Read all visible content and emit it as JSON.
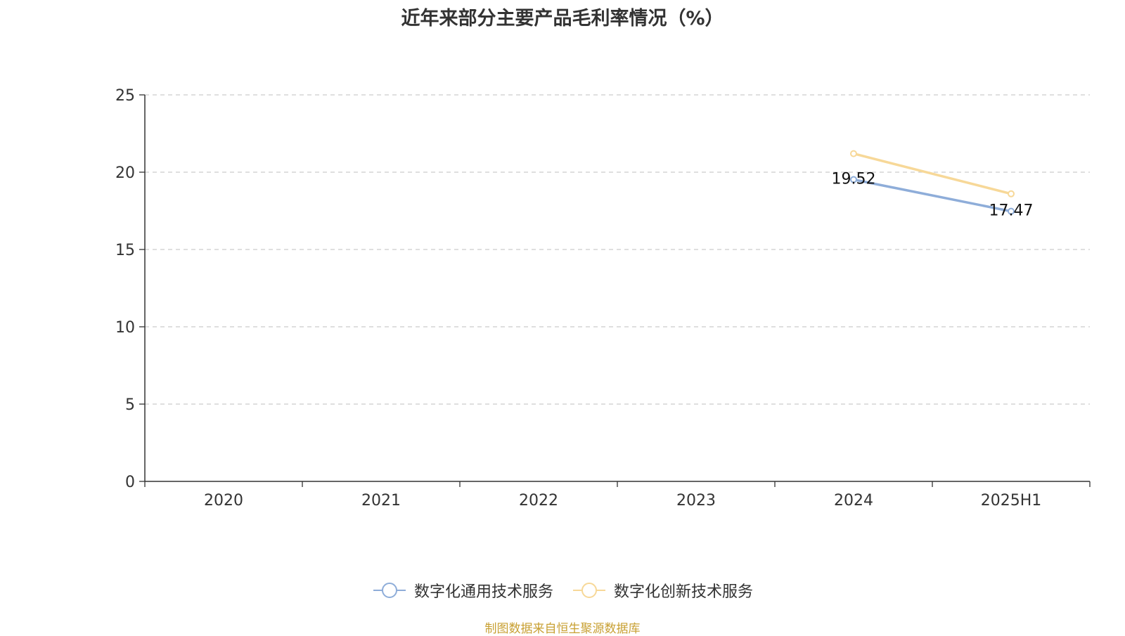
{
  "chart_data": {
    "type": "line",
    "title": "近年来部分主要产品毛利率情况（%）",
    "categories": [
      "2020",
      "2021",
      "2022",
      "2023",
      "2024",
      "2025H1"
    ],
    "ylim": [
      0,
      25
    ],
    "yticks": [
      0,
      5,
      10,
      15,
      20,
      25
    ],
    "grid": true,
    "legend_position": "bottom",
    "series": [
      {
        "name": "数字化通用技术服务",
        "color": "#8eadd9",
        "values": [
          null,
          null,
          null,
          null,
          19.52,
          17.47
        ],
        "labels": [
          null,
          null,
          null,
          null,
          "19.52",
          "17.47"
        ]
      },
      {
        "name": "数字化创新技术服务",
        "color": "#f7d898",
        "values": [
          null,
          null,
          null,
          null,
          21.2,
          18.6
        ],
        "labels": [
          null,
          null,
          null,
          null,
          null,
          null
        ]
      }
    ]
  },
  "footer": {
    "source": "制图数据来自恒生聚源数据库",
    "source_color": "#c8a033"
  }
}
